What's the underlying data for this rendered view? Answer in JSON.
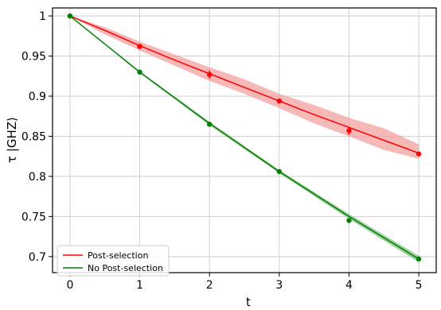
{
  "chart_data": {
    "type": "line",
    "xlabel": "t",
    "ylabel": "τ   |GHZ⟩",
    "xlim": [
      -0.25,
      5.25
    ],
    "ylim": [
      0.68,
      1.01
    ],
    "x_ticks": [
      0,
      1,
      2,
      3,
      4,
      5
    ],
    "x_tick_labels": [
      "0",
      "1",
      "2",
      "3",
      "4",
      "5"
    ],
    "y_ticks": [
      0.7,
      0.75,
      0.8,
      0.85,
      0.9,
      0.95,
      1.0
    ],
    "y_tick_labels": [
      "0.7",
      "0.75",
      "0.8",
      "0.85",
      "0.9",
      "0.95",
      "1"
    ],
    "grid": true,
    "legend_position": "bottom-left",
    "series": [
      {
        "name": "Post-selection",
        "color": "#ff0000",
        "band_color": "#f4a0a0",
        "line_x": [
          0,
          0.5,
          1,
          1.5,
          2,
          2.5,
          3,
          3.5,
          4,
          4.5,
          5
        ],
        "line_y": [
          1.0,
          0.982,
          0.963,
          0.945,
          0.928,
          0.911,
          0.894,
          0.877,
          0.861,
          0.845,
          0.829
        ],
        "band_lower": [
          1.0,
          0.977,
          0.957,
          0.938,
          0.919,
          0.903,
          0.885,
          0.866,
          0.85,
          0.833,
          0.822
        ],
        "band_upper": [
          1.0,
          0.986,
          0.968,
          0.952,
          0.936,
          0.921,
          0.903,
          0.889,
          0.873,
          0.86,
          0.84
        ],
        "points_x": [
          0,
          1,
          2,
          3,
          4,
          5
        ],
        "points_y": [
          1.0,
          0.962,
          0.927,
          0.894,
          0.857,
          0.828
        ],
        "points_err": [
          0.0,
          0.003,
          0.005,
          0.003,
          0.005,
          0.002
        ]
      },
      {
        "name": "No Post-selection",
        "color": "#008000",
        "band_color": "#7fc07f",
        "line_x": [
          0,
          1,
          2,
          3,
          4,
          5
        ],
        "line_y": [
          1.0,
          0.93,
          0.866,
          0.806,
          0.75,
          0.697
        ],
        "band_lower": [
          1.0,
          0.929,
          0.864,
          0.804,
          0.747,
          0.693
        ],
        "band_upper": [
          1.0,
          0.931,
          0.868,
          0.808,
          0.753,
          0.701
        ],
        "points_x": [
          0,
          1,
          2,
          3,
          4,
          5
        ],
        "points_y": [
          1.0,
          0.93,
          0.865,
          0.806,
          0.745,
          0.697
        ],
        "points_err": [
          0,
          0,
          0,
          0,
          0,
          0
        ]
      }
    ]
  }
}
